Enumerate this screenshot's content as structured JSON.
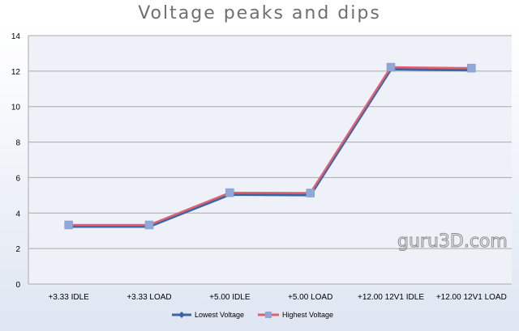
{
  "chart_data": {
    "type": "line",
    "title": "Voltage peaks and dips",
    "categories": [
      "+3.33 IDLE",
      "+3.33 LOAD",
      "+5.00 IDLE",
      "+5.00 LOAD",
      "+12.00 12V1 IDLE",
      "+12.00 12V1 LOAD"
    ],
    "series": [
      {
        "name": "Lowest Voltage",
        "values": [
          3.33,
          3.33,
          5.13,
          5.1,
          12.2,
          12.14
        ],
        "color": "#3a65a5",
        "marker": "diamond"
      },
      {
        "name": "Highest Voltage",
        "values": [
          3.33,
          3.33,
          5.15,
          5.13,
          12.22,
          12.17
        ],
        "color": "#e06070",
        "marker": "square",
        "marker_color": "#8fa8d8"
      }
    ],
    "ylim": [
      0,
      14
    ],
    "yticks": [
      0,
      2,
      4,
      6,
      8,
      10,
      12,
      14
    ],
    "grid": true,
    "legend_position": "bottom",
    "watermark": "guru3D.com"
  }
}
